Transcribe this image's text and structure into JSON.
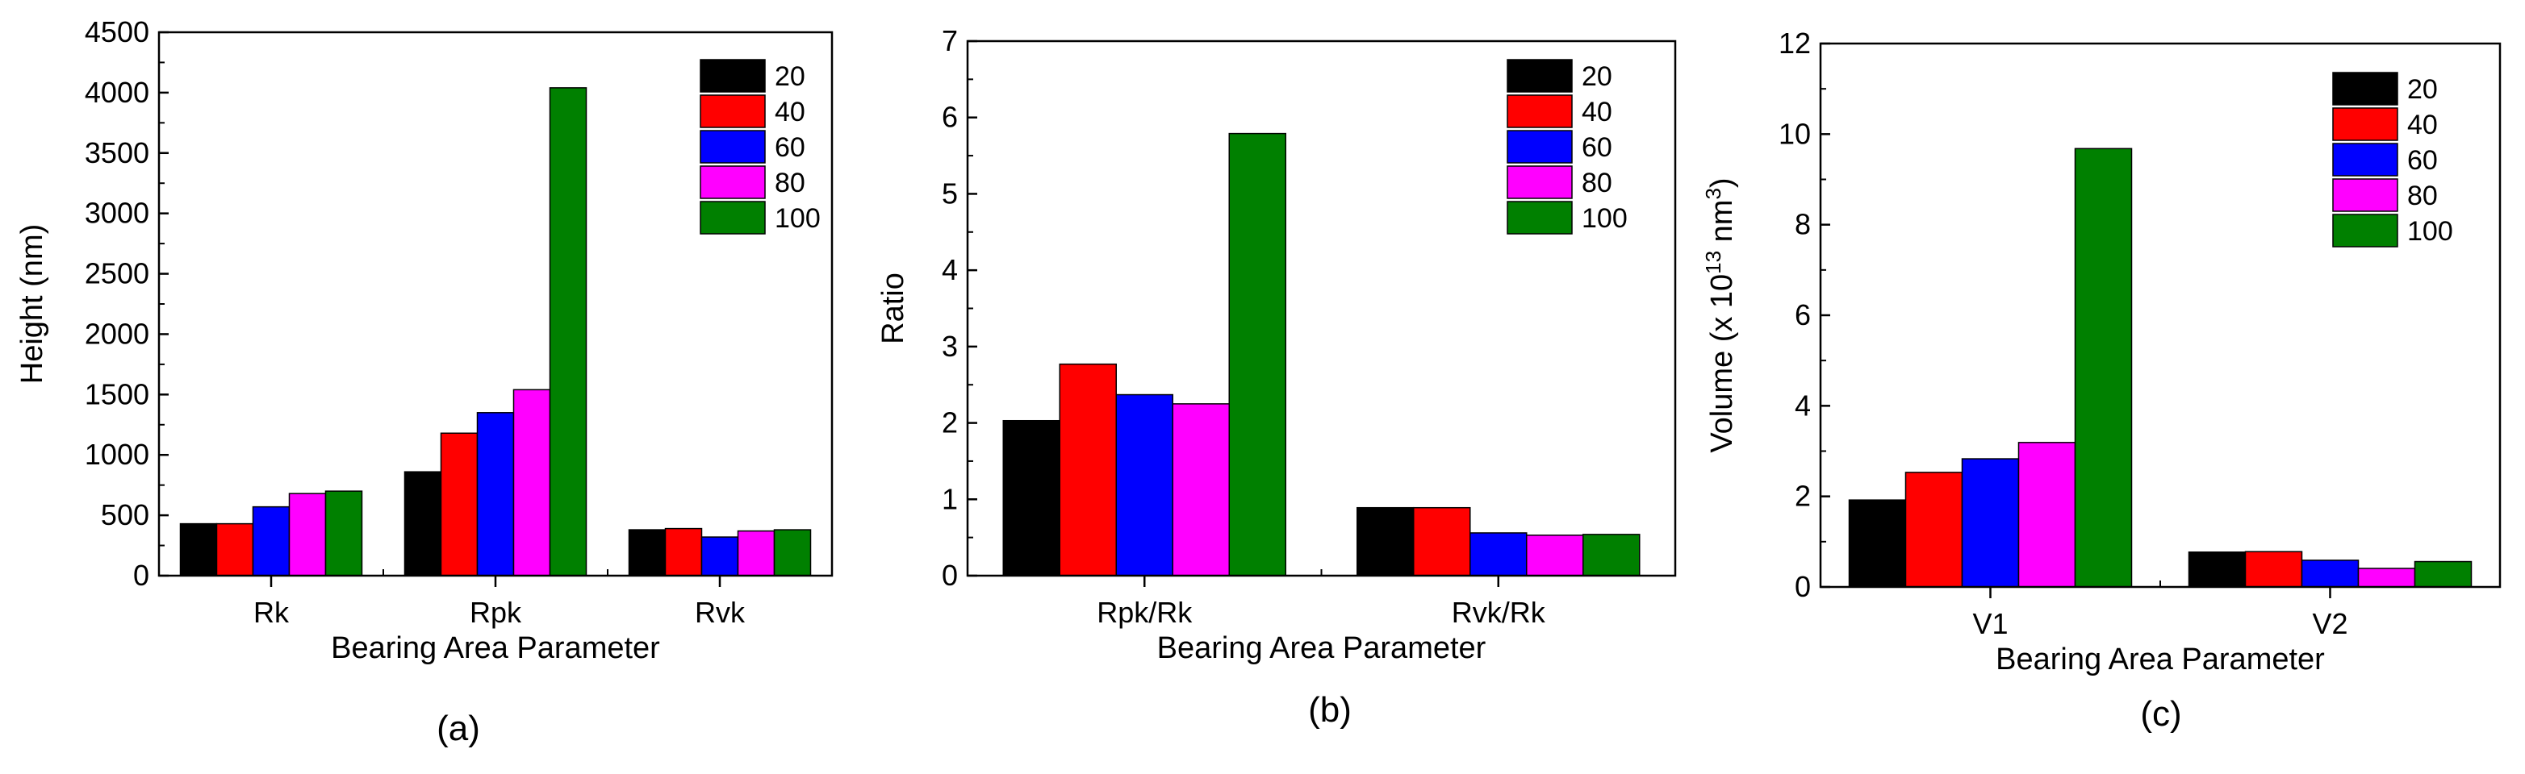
{
  "figure": {
    "legend_title": "",
    "series_names": [
      "20",
      "40",
      "60",
      "80",
      "100"
    ],
    "series_colors": [
      "#000000",
      "#ff0000",
      "#0000ff",
      "#ff00ff",
      "#008000"
    ]
  },
  "chart_data": [
    {
      "type": "bar",
      "panel_label": "(a)",
      "title": "",
      "xlabel": "Bearing Area Parameter",
      "ylabel": "Height (nm)",
      "ylim": [
        0,
        4500
      ],
      "yticks": [
        0,
        500,
        1000,
        1500,
        2000,
        2500,
        3000,
        3500,
        4000,
        4500
      ],
      "categories": [
        "Rk",
        "Rpk",
        "Rvk"
      ],
      "legend_position": "top-right",
      "series": [
        {
          "name": "20",
          "values": [
            430,
            860,
            380
          ]
        },
        {
          "name": "40",
          "values": [
            430,
            1180,
            390
          ]
        },
        {
          "name": "60",
          "values": [
            570,
            1350,
            320
          ]
        },
        {
          "name": "80",
          "values": [
            680,
            1540,
            370
          ]
        },
        {
          "name": "100",
          "values": [
            700,
            4040,
            380
          ]
        }
      ]
    },
    {
      "type": "bar",
      "panel_label": "(b)",
      "title": "",
      "xlabel": "Bearing Area Parameter",
      "ylabel": "Ratio",
      "ylim": [
        0,
        7
      ],
      "yticks": [
        0,
        1,
        2,
        3,
        4,
        5,
        6,
        7
      ],
      "categories": [
        "Rpk/Rk",
        "Rvk/Rk"
      ],
      "legend_position": "top-right",
      "series": [
        {
          "name": "20",
          "values": [
            2.03,
            0.89
          ]
        },
        {
          "name": "40",
          "values": [
            2.77,
            0.89
          ]
        },
        {
          "name": "60",
          "values": [
            2.37,
            0.56
          ]
        },
        {
          "name": "80",
          "values": [
            2.25,
            0.53
          ]
        },
        {
          "name": "100",
          "values": [
            5.79,
            0.54
          ]
        }
      ]
    },
    {
      "type": "bar",
      "panel_label": "(c)",
      "title": "",
      "xlabel": "Bearing Area Parameter",
      "ylabel": {
        "prefix": "Volume (x 10",
        "sup1": "13",
        "mid": " nm",
        "sup2": "3",
        "suffix": ")"
      },
      "ylim": [
        0,
        12
      ],
      "yticks": [
        0,
        2,
        4,
        6,
        8,
        10,
        12
      ],
      "categories": [
        "V1",
        "V2"
      ],
      "legend_position": "top-right",
      "series": [
        {
          "name": "20",
          "values": [
            1.92,
            0.77
          ]
        },
        {
          "name": "40",
          "values": [
            2.53,
            0.78
          ]
        },
        {
          "name": "60",
          "values": [
            2.83,
            0.59
          ]
        },
        {
          "name": "80",
          "values": [
            3.19,
            0.41
          ]
        },
        {
          "name": "100",
          "values": [
            9.68,
            0.56
          ]
        }
      ]
    }
  ]
}
